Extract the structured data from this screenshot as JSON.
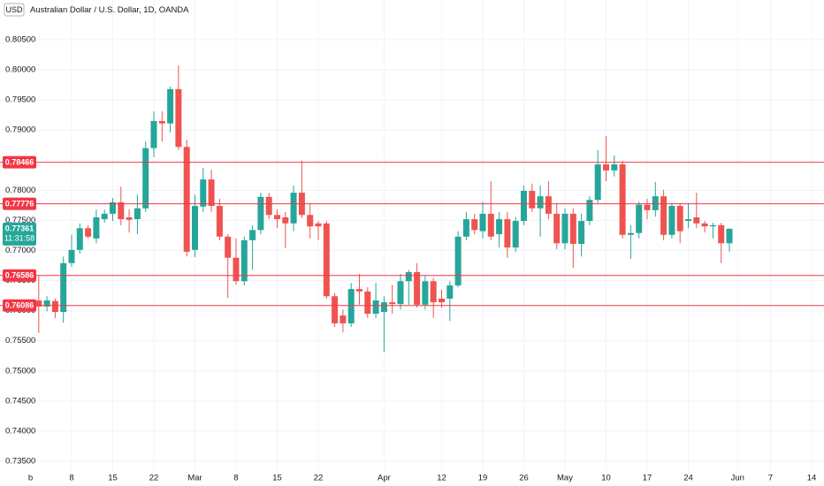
{
  "chart_data": {
    "type": "candlestick",
    "currency": "USD",
    "title": "Australian Dollar / U.S. Dollar, 1D, OANDA",
    "up_color": "#26a69a",
    "down_color": "#ef5350",
    "line_color": "#f23645",
    "grid": true,
    "categories": [
      "b",
      null,
      null,
      null,
      null,
      "8",
      null,
      null,
      null,
      null,
      "15",
      null,
      null,
      null,
      null,
      "22",
      null,
      null,
      null,
      null,
      "Mar",
      null,
      null,
      null,
      null,
      "8",
      null,
      null,
      null,
      null,
      "15",
      null,
      null,
      null,
      null,
      "22",
      null,
      null,
      null,
      null,
      null,
      null,
      null,
      "Apr",
      null,
      null,
      null,
      null,
      null,
      null,
      "12",
      null,
      null,
      null,
      null,
      "19",
      null,
      null,
      null,
      null,
      "26",
      null,
      null,
      null,
      null,
      "May",
      null,
      null,
      null,
      null,
      "10",
      null,
      null,
      null,
      null,
      "17",
      null,
      null,
      null,
      null,
      "24",
      null,
      null,
      null,
      null,
      null,
      "Jun",
      null,
      null,
      null,
      "7",
      null,
      null,
      null,
      null,
      "14",
      null
    ],
    "open": [
      null,
      0.7617,
      0.7607,
      0.7616,
      0.7598,
      0.7679,
      0.7701,
      0.7737,
      0.772,
      0.7752,
      0.7761,
      0.778,
      0.7755,
      0.7752,
      0.777,
      0.787,
      0.7915,
      0.7911,
      0.7968,
      0.7872,
      0.7701,
      0.7773,
      0.7818,
      0.7774,
      0.7723,
      0.7688,
      0.7649,
      0.7717,
      0.7734,
      0.7789,
      0.7759,
      0.7755,
      0.7745,
      0.7796,
      0.7759,
      0.7745,
      0.7745,
      0.7624,
      0.7592,
      0.7579,
      0.7636,
      0.7632,
      0.7595,
      0.7598,
      0.7614,
      0.7611,
      0.7649,
      0.7664,
      0.761,
      0.7649,
      0.762,
      0.762,
      0.7642,
      0.7723,
      0.7752,
      0.7732,
      0.7761,
      0.7727,
      0.7752,
      0.7705,
      0.7749,
      0.7799,
      0.777,
      0.779,
      0.7761,
      0.7712,
      0.7761,
      0.7711,
      0.7749,
      0.7784,
      0.7843,
      0.7833,
      0.7843,
      0.7726,
      0.7729,
      0.7776,
      0.7767,
      0.779,
      0.7726,
      0.7774,
      0.7749,
      0.7755,
      0.7745,
      0.774,
      0.7742,
      0.7712,
      null,
      null,
      null,
      null,
      null,
      null,
      null,
      null,
      null,
      null,
      null
    ],
    "high": [
      null,
      0.7658,
      0.7624,
      0.762,
      0.769,
      0.7726,
      0.7745,
      0.7742,
      0.7768,
      0.7768,
      0.7787,
      0.7806,
      0.7768,
      0.7793,
      0.7881,
      0.7931,
      0.7931,
      0.7972,
      0.8007,
      0.7884,
      0.7793,
      0.7837,
      0.7834,
      0.7786,
      0.7727,
      0.772,
      0.7723,
      0.7742,
      0.7796,
      0.7796,
      0.7768,
      0.7764,
      0.7808,
      0.7849,
      0.7779,
      0.7749,
      0.7749,
      0.7629,
      0.7602,
      0.7646,
      0.7661,
      0.7639,
      0.7646,
      0.7624,
      0.7643,
      0.7661,
      0.7668,
      0.7679,
      0.7658,
      0.7654,
      0.7635,
      0.7649,
      0.7732,
      0.7764,
      0.7761,
      0.7781,
      0.7815,
      0.7764,
      0.7764,
      0.7756,
      0.7808,
      0.7811,
      0.7808,
      0.7815,
      0.7779,
      0.777,
      0.777,
      0.7761,
      0.779,
      0.7867,
      0.789,
      0.7858,
      0.7849,
      0.7742,
      0.7781,
      0.7786,
      0.7814,
      0.7801,
      0.7779,
      0.7779,
      0.7779,
      0.7796,
      0.7749,
      0.7746,
      0.7746,
      0.7737,
      null,
      null,
      null,
      null,
      null,
      null,
      null,
      null,
      null,
      null,
      null
    ],
    "low": [
      null,
      0.7563,
      0.7599,
      0.7588,
      0.758,
      0.7673,
      0.7695,
      0.772,
      0.7712,
      0.7746,
      0.7749,
      0.7742,
      0.773,
      0.7727,
      0.7764,
      0.7855,
      0.7881,
      0.7896,
      0.7867,
      0.769,
      0.7689,
      0.7764,
      0.7764,
      0.7717,
      0.7621,
      0.7643,
      0.7642,
      0.7668,
      0.7727,
      0.7752,
      0.7737,
      0.7704,
      0.7732,
      0.7754,
      0.772,
      0.7717,
      0.762,
      0.7573,
      0.7564,
      0.7573,
      0.761,
      0.7588,
      0.7588,
      0.7532,
      0.7595,
      0.7602,
      0.761,
      0.7605,
      0.7602,
      0.7588,
      0.7605,
      0.7583,
      0.7639,
      0.7717,
      0.7727,
      0.772,
      0.7717,
      0.7705,
      0.7688,
      0.7698,
      0.7742,
      0.7764,
      0.7723,
      0.7752,
      0.7702,
      0.7702,
      0.7671,
      0.769,
      0.7742,
      0.7779,
      0.7815,
      0.7823,
      0.772,
      0.7686,
      0.772,
      0.7752,
      0.7756,
      0.7717,
      0.772,
      0.7712,
      0.7737,
      0.7737,
      0.773,
      0.772,
      0.7679,
      0.7698,
      null,
      null,
      null,
      null,
      null,
      null,
      null,
      null,
      null,
      null,
      null
    ],
    "close": [
      null,
      0.7607,
      0.7617,
      0.7598,
      0.7679,
      0.7701,
      0.7737,
      0.7723,
      0.7755,
      0.7761,
      0.778,
      0.7752,
      0.7751,
      0.777,
      0.787,
      0.7915,
      0.7911,
      0.7968,
      0.7872,
      0.7698,
      0.7774,
      0.7818,
      0.7774,
      0.7723,
      0.7688,
      0.7649,
      0.7717,
      0.7734,
      0.7789,
      0.7759,
      0.7752,
      0.7745,
      0.7796,
      0.7759,
      0.774,
      0.774,
      0.7624,
      0.7579,
      0.7579,
      0.7636,
      0.7632,
      0.7595,
      0.7617,
      0.7614,
      0.7611,
      0.7649,
      0.7664,
      0.761,
      0.7649,
      0.7614,
      0.7614,
      0.7642,
      0.7723,
      0.7752,
      0.7734,
      0.7761,
      0.7723,
      0.7752,
      0.7705,
      0.7749,
      0.7799,
      0.777,
      0.779,
      0.7761,
      0.7712,
      0.7761,
      0.7711,
      0.7749,
      0.7784,
      0.7843,
      0.7833,
      0.7843,
      0.7726,
      0.7729,
      0.7776,
      0.7767,
      0.779,
      0.7726,
      0.7774,
      0.7732,
      0.7752,
      0.7745,
      0.774,
      0.7742,
      0.7712,
      0.7736,
      null,
      null,
      null,
      null,
      null,
      null,
      null,
      null,
      null,
      null,
      null
    ],
    "ylim": [
      0.73353,
      0.8116
    ],
    "yticks": [
      {
        "value": 0.805,
        "label": "0.80500"
      },
      {
        "value": 0.8,
        "label": "0.80000"
      },
      {
        "value": 0.795,
        "label": "0.79500"
      },
      {
        "value": 0.79,
        "label": "0.79000"
      },
      {
        "value": 0.785,
        "label": "0.78500"
      },
      {
        "value": 0.78,
        "label": "0.78000"
      },
      {
        "value": 0.775,
        "label": "0.77500"
      },
      {
        "value": 0.77,
        "label": "0.77000"
      },
      {
        "value": 0.765,
        "label": "0.76500"
      },
      {
        "value": 0.76,
        "label": "0.76000"
      },
      {
        "value": 0.755,
        "label": "0.75500"
      },
      {
        "value": 0.75,
        "label": "0.75000"
      },
      {
        "value": 0.745,
        "label": "0.74500"
      },
      {
        "value": 0.74,
        "label": "0.74000"
      },
      {
        "value": 0.735,
        "label": "0.73500"
      }
    ],
    "hlines": [
      0.78466,
      0.77776,
      0.76586,
      0.76086
    ],
    "last_price": 0.77361,
    "countdown": "11:31:58"
  }
}
